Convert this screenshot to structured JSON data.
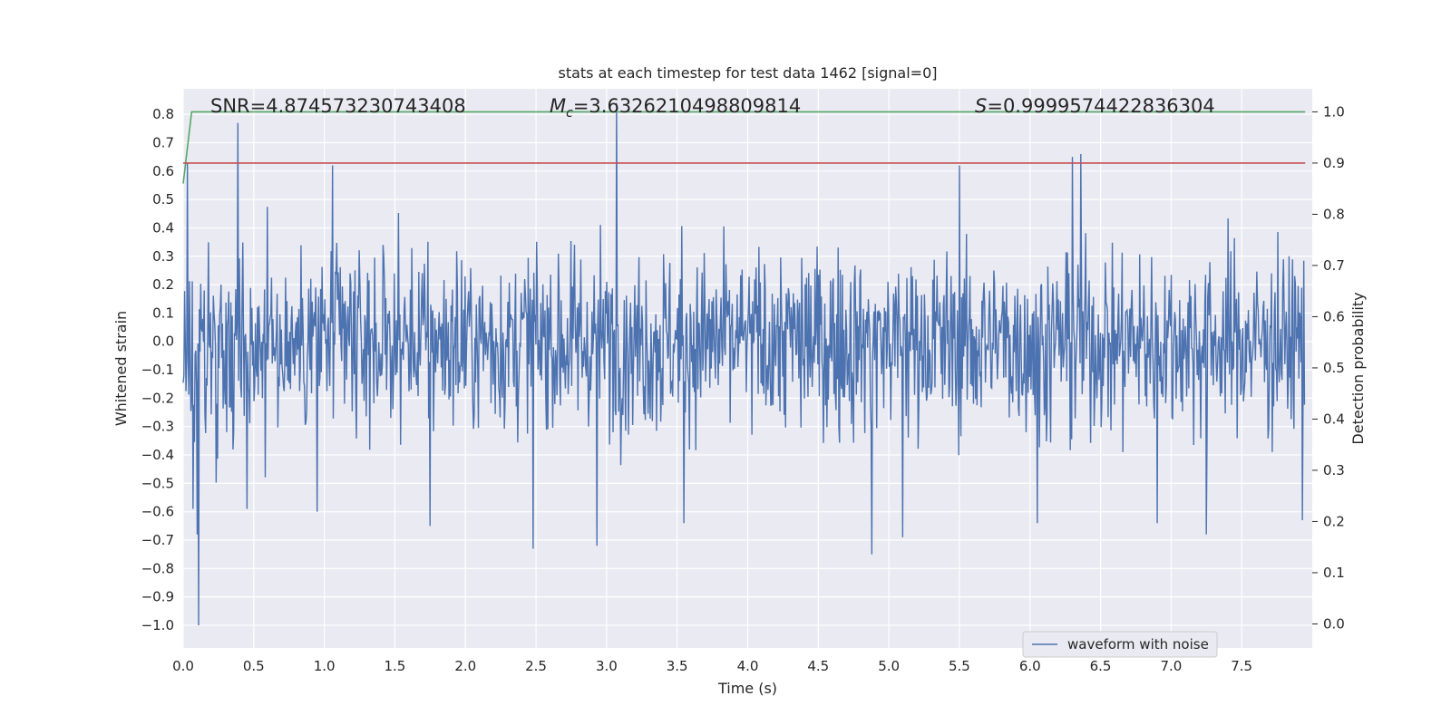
{
  "chart_data": {
    "type": "line",
    "title": "stats at each timestep for test data 1462 [signal=0]",
    "xlabel": "Time (s)",
    "ylabel": "Whitened strain",
    "y2label": "Detection probability",
    "xlim": [
      0.0,
      8.0
    ],
    "ylim": [
      -1.08,
      0.89
    ],
    "y2lim": [
      -0.047,
      1.045
    ],
    "xticks": [
      "0.0",
      "0.5",
      "1.0",
      "1.5",
      "2.0",
      "2.5",
      "3.0",
      "3.5",
      "4.0",
      "4.5",
      "5.0",
      "5.5",
      "6.0",
      "6.5",
      "7.0",
      "7.5"
    ],
    "yticks": [
      "0.8",
      "0.7",
      "0.6",
      "0.5",
      "0.4",
      "0.3",
      "0.2",
      "0.1",
      "0.0",
      "−0.1",
      "−0.2",
      "−0.3",
      "−0.4",
      "−0.5",
      "−0.6",
      "−0.7",
      "−0.8",
      "−0.9",
      "−1.0"
    ],
    "y2ticks": [
      "1.0",
      "0.9",
      "0.8",
      "0.7",
      "0.6",
      "0.5",
      "0.4",
      "0.3",
      "0.2",
      "0.1",
      "0.0"
    ],
    "grid": true,
    "legend_position": "lower-right",
    "annotations": {
      "snr": "SNR=4.874573230743408",
      "mc_prefix": "M",
      "mc_sub": "c",
      "mc_value": "=3.6326210498809814",
      "s_prefix": "S",
      "s_value": "=0.9999574422836304"
    },
    "series": [
      {
        "name": "waveform with noise",
        "axis": "left",
        "color": "#4c72b0",
        "description_envelope": {
          "peaks_max": [
            [
              0.39,
              0.77
            ],
            [
              3.07,
              0.84
            ],
            [
              6.3,
              0.65
            ],
            [
              6.36,
              0.66
            ],
            [
              7.93,
              0.67
            ],
            [
              0.03,
              0.63
            ],
            [
              1.06,
              0.62
            ],
            [
              5.5,
              0.62
            ]
          ],
          "peaks_min": [
            [
              0.11,
              -1.0
            ],
            [
              0.1,
              -0.68
            ],
            [
              0.07,
              -0.59
            ],
            [
              2.48,
              -0.73
            ],
            [
              2.93,
              -0.72
            ],
            [
              4.88,
              -0.75
            ],
            [
              5.1,
              -0.69
            ],
            [
              7.25,
              -0.68
            ],
            [
              7.93,
              -0.63
            ],
            [
              1.75,
              -0.65
            ],
            [
              0.45,
              -0.59
            ],
            [
              0.95,
              -0.6
            ],
            [
              6.05,
              -0.64
            ],
            [
              6.9,
              -0.64
            ],
            [
              3.55,
              -0.64
            ]
          ]
        }
      },
      {
        "name": "",
        "axis": "right",
        "color": "#55a868",
        "x": [
          0.0,
          0.06,
          7.95
        ],
        "y": [
          0.86,
          1.0,
          1.0
        ]
      },
      {
        "name": "",
        "axis": "right",
        "color": "#c44e52",
        "x": [
          0.0,
          7.95
        ],
        "y": [
          0.9,
          0.9
        ]
      }
    ]
  }
}
